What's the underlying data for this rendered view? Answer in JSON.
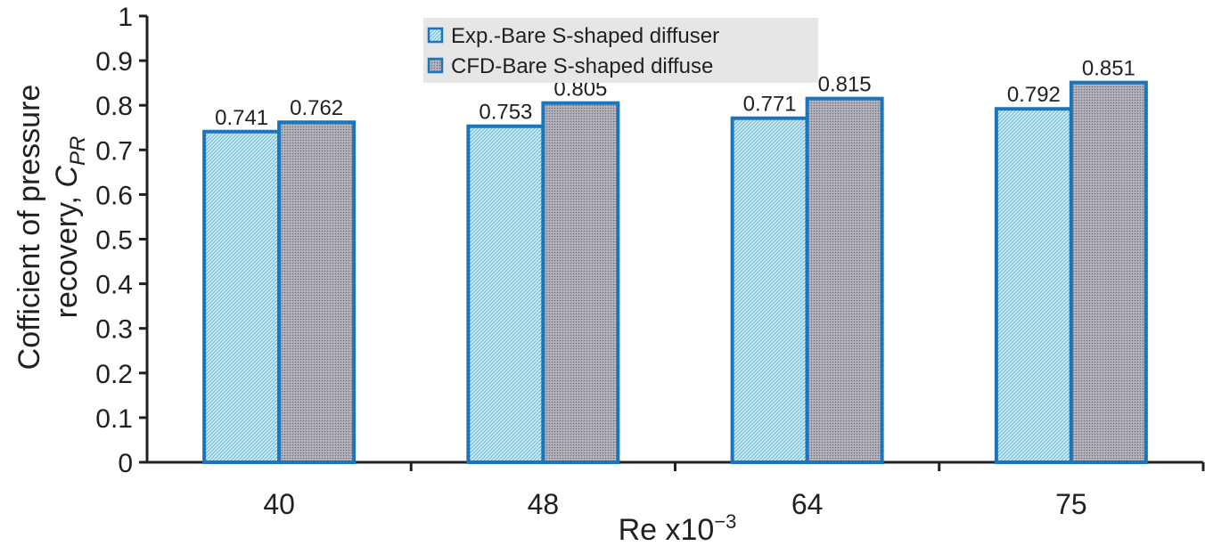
{
  "chart_data": {
    "type": "bar",
    "categories": [
      "40",
      "48",
      "64",
      "75"
    ],
    "series": [
      {
        "name": "Exp.-Bare S-shaped diffuser",
        "values": [
          0.741,
          0.753,
          0.771,
          0.792
        ]
      },
      {
        "name": "CFD-Bare S-shaped diffuse",
        "values": [
          0.762,
          0.805,
          0.815,
          0.851
        ]
      }
    ],
    "data_labels": [
      [
        "0.741",
        "0.753",
        "0.771",
        "0.792"
      ],
      [
        "0.762",
        "0.805",
        "0.815",
        "0.851"
      ]
    ],
    "y_ticks": [
      "0",
      "0.1",
      "0.2",
      "0.3",
      "0.4",
      "0.5",
      "0.6",
      "0.7",
      "0.8",
      "0.9",
      "1"
    ],
    "ylim": [
      0,
      1
    ],
    "xlabel": {
      "base": "Re x10",
      "exponent": "−3"
    },
    "ylabel": {
      "line1": "Cofficient of pressure",
      "line2": "recovery, ",
      "symbol": "C",
      "subscript": "PR"
    },
    "legend_position": "top-center",
    "colors": {
      "bar_stroke": "#1b75bc",
      "exp_fill": "#b8e3f2",
      "cfd_fill": "#a3a3ad",
      "axis": "#231f20",
      "legend_bg": "#e6e6e6"
    }
  }
}
